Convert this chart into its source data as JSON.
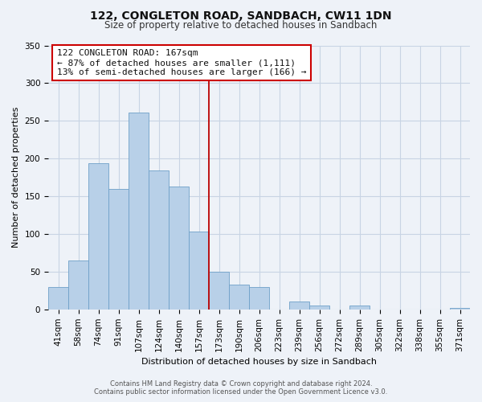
{
  "title": "122, CONGLETON ROAD, SANDBACH, CW11 1DN",
  "subtitle": "Size of property relative to detached houses in Sandbach",
  "xlabel": "Distribution of detached houses by size in Sandbach",
  "ylabel": "Number of detached properties",
  "bin_labels": [
    "41sqm",
    "58sqm",
    "74sqm",
    "91sqm",
    "107sqm",
    "124sqm",
    "140sqm",
    "157sqm",
    "173sqm",
    "190sqm",
    "206sqm",
    "223sqm",
    "239sqm",
    "256sqm",
    "272sqm",
    "289sqm",
    "305sqm",
    "322sqm",
    "338sqm",
    "355sqm",
    "371sqm"
  ],
  "bar_values": [
    30,
    65,
    194,
    160,
    261,
    184,
    163,
    103,
    50,
    33,
    30,
    0,
    11,
    5,
    0,
    5,
    0,
    0,
    0,
    0,
    2
  ],
  "bar_color": "#b8d0e8",
  "bar_edge_color": "#6ea0c8",
  "vline_index": 7.5,
  "vline_color": "#bb0000",
  "ann_line1": "122 CONGLETON ROAD: 167sqm",
  "ann_line2": "← 87% of detached houses are smaller (1,111)",
  "ann_line3": "13% of semi-detached houses are larger (166) →",
  "ann_box_edge_color": "#cc0000",
  "ann_box_face_color": "#ffffff",
  "ylim": [
    0,
    350
  ],
  "yticks": [
    0,
    50,
    100,
    150,
    200,
    250,
    300,
    350
  ],
  "footer_line1": "Contains HM Land Registry data © Crown copyright and database right 2024.",
  "footer_line2": "Contains public sector information licensed under the Open Government Licence v3.0.",
  "bg_color": "#eef2f8",
  "grid_color": "#c8d4e4",
  "title_fontsize": 10,
  "subtitle_fontsize": 8.5,
  "axis_label_fontsize": 8,
  "tick_fontsize": 7.5,
  "ann_fontsize": 8
}
